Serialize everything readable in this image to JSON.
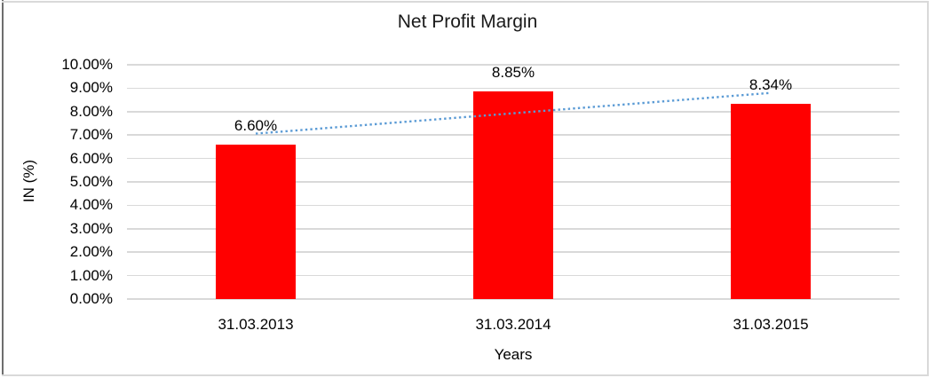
{
  "chart_data": {
    "type": "bar",
    "title": "Net Profit Margin",
    "xlabel": "Years",
    "ylabel": "IN (%)",
    "categories": [
      "31.03.2013",
      "31.03.2014",
      "31.03.2015"
    ],
    "values": [
      6.6,
      8.85,
      8.34
    ],
    "data_labels": [
      "6.60%",
      "8.85%",
      "8.34%"
    ],
    "series_name": "Net Profit Margin",
    "ylim": [
      0,
      10
    ],
    "ytick_step": 1,
    "ytick_labels": [
      "0.00%",
      "1.00%",
      "2.00%",
      "3.00%",
      "4.00%",
      "5.00%",
      "6.00%",
      "7.00%",
      "8.00%",
      "9.00%",
      "10.00%"
    ],
    "grid": true,
    "legend": "none",
    "bar_color": "#ff0000",
    "gridline_color": "#d9d9d9",
    "trendline": {
      "type": "linear",
      "style": "dotted",
      "color": "#5b9bd5",
      "start_value": 7.06,
      "end_value": 8.8
    }
  }
}
